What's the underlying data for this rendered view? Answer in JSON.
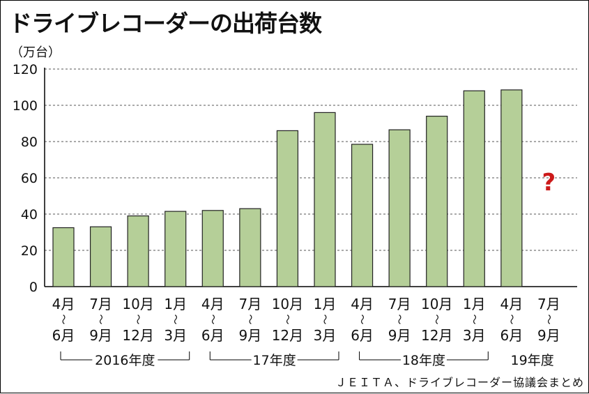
{
  "title": "ドライブレコーダーの出荷台数",
  "unit_label": "（万台）",
  "source": "ＪＥＩＴＡ、ドライブレコーダー協議会まとめ",
  "colors": {
    "bar_fill": "#b5cf98",
    "bar_stroke": "#222222",
    "grid": "#555555",
    "question": "#cc1a1a"
  },
  "chart_data": {
    "type": "bar",
    "title": "ドライブレコーダーの出荷台数",
    "ylabel": "（万台）",
    "ylim": [
      0,
      120
    ],
    "yticks": [
      0,
      20,
      40,
      60,
      80,
      100,
      120
    ],
    "grid": true,
    "categories": [
      {
        "top": "4月",
        "bottom": "6月"
      },
      {
        "top": "7月",
        "bottom": "9月"
      },
      {
        "top": "10月",
        "bottom": "12月"
      },
      {
        "top": "1月",
        "bottom": "3月"
      },
      {
        "top": "4月",
        "bottom": "6月"
      },
      {
        "top": "7月",
        "bottom": "9月"
      },
      {
        "top": "10月",
        "bottom": "12月"
      },
      {
        "top": "1月",
        "bottom": "3月"
      },
      {
        "top": "4月",
        "bottom": "6月"
      },
      {
        "top": "7月",
        "bottom": "9月"
      },
      {
        "top": "10月",
        "bottom": "12月"
      },
      {
        "top": "1月",
        "bottom": "3月"
      },
      {
        "top": "4月",
        "bottom": "6月"
      },
      {
        "top": "7月",
        "bottom": "9月"
      }
    ],
    "range_mark": "～",
    "values": [
      32.5,
      33,
      39,
      41.5,
      42,
      43,
      86,
      96,
      78.5,
      86.5,
      94,
      108,
      108.5,
      null
    ],
    "unknown_marker": "?",
    "fiscal_years": [
      {
        "label": "2016年度",
        "start": 0,
        "end": 3
      },
      {
        "label": "17年度",
        "start": 4,
        "end": 7
      },
      {
        "label": "18年度",
        "start": 8,
        "end": 11
      },
      {
        "label": "19年度",
        "start": 12,
        "end": 13
      }
    ]
  }
}
